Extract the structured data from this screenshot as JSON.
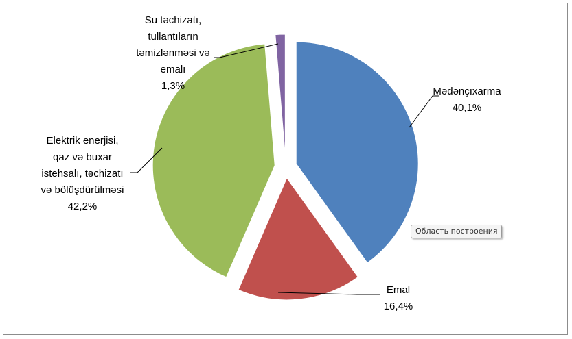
{
  "chart_data": {
    "type": "pie",
    "series": [
      {
        "name": "Mədənçıxarma",
        "value": 40.1,
        "label": "40,1%",
        "color": "#4F81BD",
        "label_lines": [
          "Mədənçıxarma",
          "40,1%"
        ]
      },
      {
        "name": "Emal",
        "value": 16.4,
        "label": "16,4%",
        "color": "#C0504D",
        "label_lines": [
          "Emal",
          "16,4%"
        ]
      },
      {
        "name": "Elektrik enerjisi, qaz və buxar istehsalı, təchizatı və bölüşdürülməsi",
        "value": 42.2,
        "label": "42,2%",
        "color": "#9BBB59",
        "label_lines": [
          "Elektrik  enerjisi,",
          "qaz və  buxar",
          "istehsalı, təchizatı",
          "və  bölüşdürülməsi",
          "42,2%"
        ]
      },
      {
        "name": "Su təchizatı, tullantıların təmizlənməsi və emalı",
        "value": 1.3,
        "label": "1,3%",
        "color": "#8064A2",
        "label_lines": [
          "Su təchizatı,",
          "tullantıların",
          "təmizlənməsi  və",
          "emalı",
          "1,3%"
        ]
      }
    ],
    "start_angle": "top, clockwise",
    "exploded": true,
    "legend": "none"
  },
  "tooltip": "Область построения"
}
